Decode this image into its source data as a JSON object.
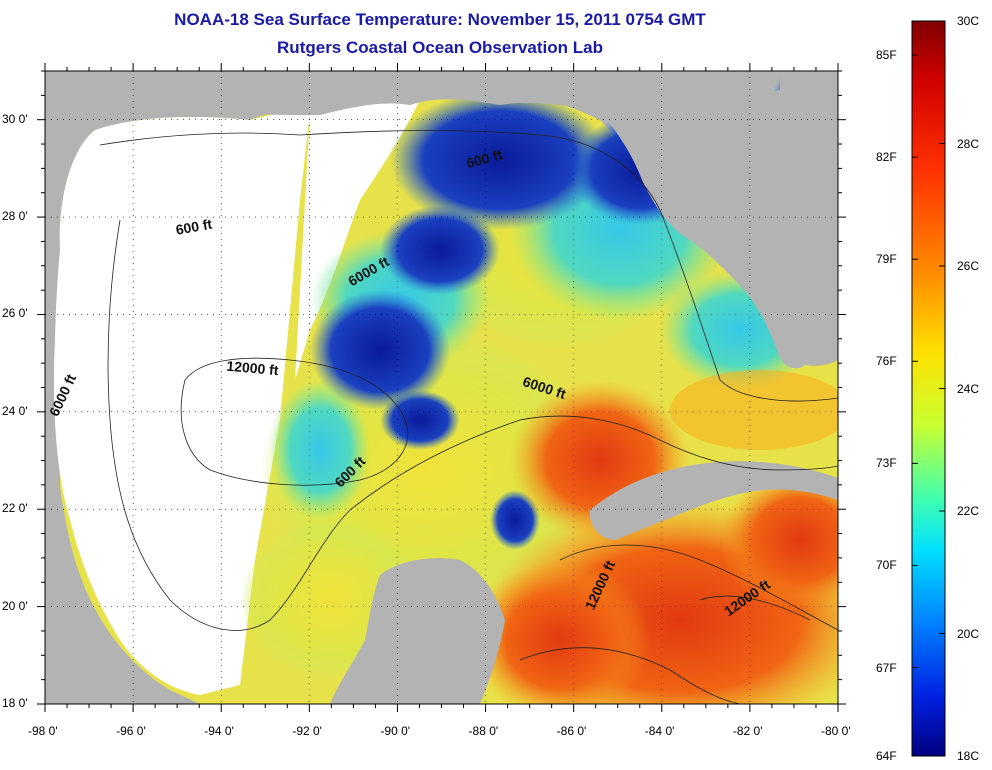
{
  "title": "NOAA-18 Sea Surface Temperature:  November 15, 2011 0754 GMT",
  "subtitle": "Rutgers Coastal Ocean Observation Lab",
  "map": {
    "lon_ticks": [
      "-98 0'",
      "-96 0'",
      "-94 0'",
      "-92 0'",
      "-90 0'",
      "-88 0'",
      "-86 0'",
      "-84 0'",
      "-82 0'",
      "-80 0'"
    ],
    "lat_ticks": [
      "30 0'",
      "28 0'",
      "26 0'",
      "24 0'",
      "22 0'",
      "20 0'",
      "18 0'"
    ],
    "lon_range": [
      -98,
      -80
    ],
    "lat_range": [
      18,
      31
    ],
    "contour_labels": [
      {
        "text": "600 ft",
        "lon": -94.6,
        "lat": 27.7,
        "angle": -10
      },
      {
        "text": "600 ft",
        "lon": -88.0,
        "lat": 29.1,
        "angle": -15
      },
      {
        "text": "6000 ft",
        "lon": -90.6,
        "lat": 26.8,
        "angle": -30
      },
      {
        "text": "6000 ft",
        "lon": -97.5,
        "lat": 24.3,
        "angle": -65
      },
      {
        "text": "12000 ft",
        "lon": -93.3,
        "lat": 24.8,
        "angle": 5
      },
      {
        "text": "6000 ft",
        "lon": -86.7,
        "lat": 24.4,
        "angle": 18
      },
      {
        "text": "600 ft",
        "lon": -91.0,
        "lat": 22.7,
        "angle": -45
      },
      {
        "text": "12000 ft",
        "lon": -85.3,
        "lat": 20.4,
        "angle": -65
      },
      {
        "text": "12000 ft",
        "lon": -82.0,
        "lat": 20.1,
        "angle": -35
      }
    ]
  },
  "colorbar": {
    "celsius_range": [
      18,
      30
    ],
    "celsius_labels": [
      "30C",
      "28C",
      "26C",
      "24C",
      "22C",
      "20C",
      "18C"
    ],
    "fahrenheit_labels": [
      "85F",
      "82F",
      "79F",
      "76F",
      "73F",
      "70F",
      "67F",
      "64F"
    ],
    "fahrenheit_values": [
      85,
      82,
      79,
      76,
      73,
      70,
      67,
      64
    ]
  },
  "colors": {
    "title": "#1a1aa8",
    "land": "#b3b3b3",
    "no_data": "#ffffff",
    "warm": "#e0380c",
    "cold": "#0a1a9a"
  }
}
